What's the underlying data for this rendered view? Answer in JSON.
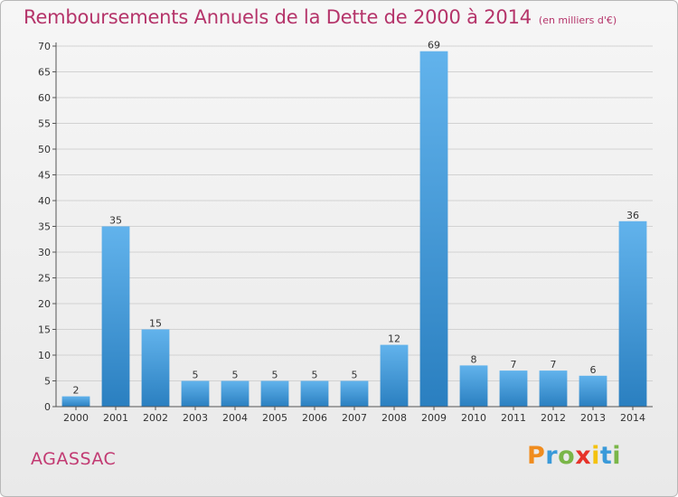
{
  "header": {
    "title": "Remboursements Annuels de la Dette de 2000 à 2014",
    "unit": "(en milliers d'€)"
  },
  "footer": {
    "place": "AGASSAC",
    "brand": {
      "letters": [
        "P",
        "r",
        "o",
        "x",
        "i",
        "t",
        "i"
      ],
      "colors": [
        "#f08c1e",
        "#3a9ad9",
        "#7ab648",
        "#e6332a",
        "#f4c20d",
        "#3a9ad9",
        "#7ab648"
      ]
    }
  },
  "chart_data": {
    "type": "bar",
    "title": "Remboursements Annuels de la Dette de 2000 à 2014",
    "subtitle": "(en milliers d'€)",
    "xlabel": "",
    "ylabel": "",
    "categories": [
      "2000",
      "2001",
      "2002",
      "2003",
      "2004",
      "2005",
      "2006",
      "2007",
      "2008",
      "2009",
      "2010",
      "2011",
      "2012",
      "2013",
      "2014"
    ],
    "values": [
      2,
      35,
      15,
      5,
      5,
      5,
      5,
      5,
      12,
      69,
      8,
      7,
      7,
      6,
      36
    ],
    "data_labels": [
      "2",
      "35",
      "15",
      "5",
      "5",
      "5",
      "5",
      "5",
      "12",
      "69",
      "8",
      "7",
      "7",
      "6",
      "36"
    ],
    "ylim": [
      0,
      70
    ],
    "yticks": [
      0,
      5,
      10,
      15,
      20,
      25,
      30,
      35,
      40,
      45,
      50,
      55,
      60,
      65,
      70
    ],
    "grid": true,
    "legend": "none",
    "colors": {
      "bar_light": "#62b3ec",
      "bar_dark": "#2a7fc0",
      "grid": "#d2d2d2",
      "axis": "#555555"
    }
  }
}
